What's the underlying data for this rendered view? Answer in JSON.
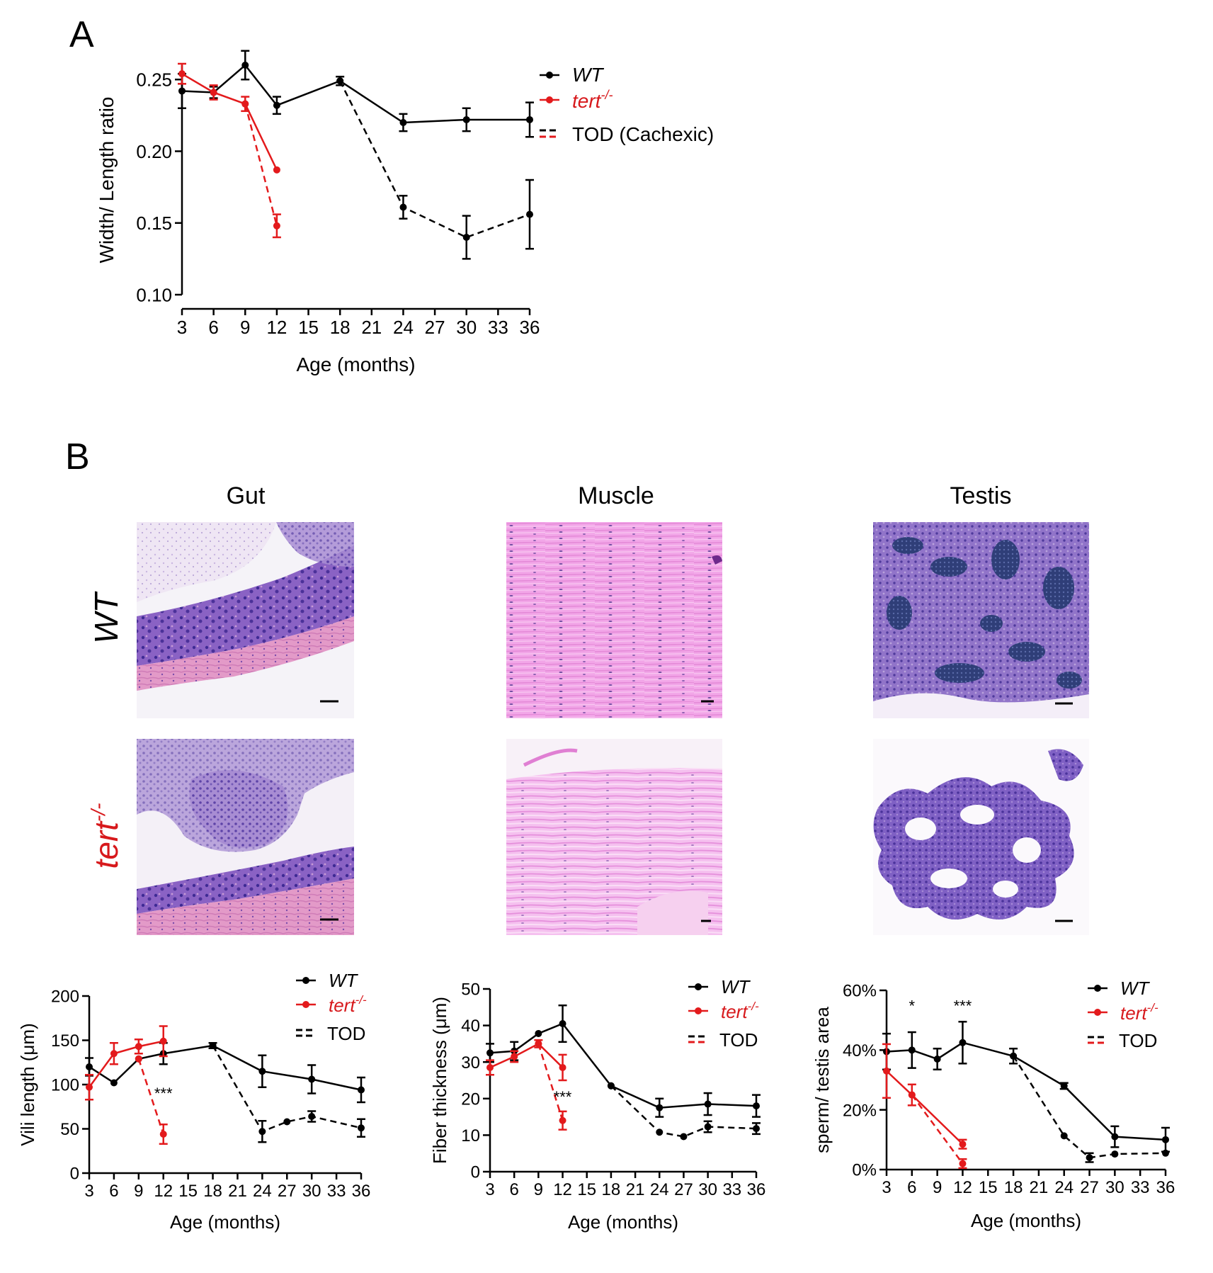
{
  "panels": {
    "a": {
      "letter": "A"
    },
    "b": {
      "letter": "B"
    }
  },
  "micrographs": {
    "columns": [
      "Gut",
      "Muscle",
      "Testis"
    ],
    "rows": [
      {
        "label": "WT",
        "color": "#000000"
      },
      {
        "label": "tert",
        "superscript": "-/-",
        "color": "#d7191c"
      }
    ]
  },
  "colors": {
    "wt": "#000000",
    "tert": "#e31a1c",
    "text_tert": "#d7191c"
  },
  "legend_text": {
    "wt": "WT",
    "tert": "tert",
    "tert_sup": "-/-",
    "tod_cachexic": "TOD (Cachexic)",
    "tod": "TOD"
  },
  "significance": {
    "gut": [
      {
        "x": 12,
        "y": 84,
        "text": "***"
      }
    ],
    "muscle": [
      {
        "x": 12,
        "y": 19,
        "text": "***"
      }
    ],
    "testis": [
      {
        "x": 6,
        "y": 53,
        "text": "*"
      },
      {
        "x": 12,
        "y": 53,
        "text": "***"
      }
    ]
  },
  "chart_data": [
    {
      "id": "ratio",
      "type": "line",
      "xlabel": "Age (months)",
      "ylabel": "Width/ Length ratio",
      "xlim": [
        3,
        36
      ],
      "ylim": [
        0.1,
        0.26
      ],
      "xticks": [
        3,
        6,
        9,
        12,
        15,
        18,
        21,
        24,
        27,
        30,
        33,
        36
      ],
      "yticks": [
        0.1,
        0.15,
        0.2,
        0.25
      ],
      "ytick_labels": [
        "0.10",
        "0.15",
        "0.20",
        "0.25"
      ],
      "series": [
        {
          "name": "WT",
          "color": "#000000",
          "dashed": false,
          "points": [
            [
              3,
              0.242,
              0.012
            ],
            [
              6,
              0.241,
              0.004
            ],
            [
              9,
              0.26,
              0.01
            ],
            [
              12,
              0.232,
              0.006
            ],
            [
              18,
              0.249,
              0.003
            ],
            [
              24,
              0.22,
              0.006
            ],
            [
              30,
              0.222,
              0.008
            ],
            [
              36,
              0.222,
              0.012
            ]
          ]
        },
        {
          "name": "tert",
          "color": "#e31a1c",
          "dashed": false,
          "points": [
            [
              3,
              0.254,
              0.007
            ],
            [
              6,
              0.241,
              0.005
            ],
            [
              9,
              0.233,
              0.005
            ],
            [
              12,
              0.187,
              0
            ]
          ]
        },
        {
          "name": "TOD (Cachexic)",
          "color": "#e31a1c",
          "dashed": true,
          "points": [
            [
              9,
              0.233,
              0
            ],
            [
              12,
              0.148,
              0.008
            ]
          ]
        },
        {
          "name": "TOD (Cachexic)",
          "color": "#000000",
          "dashed": true,
          "points": [
            [
              18,
              0.249,
              0
            ],
            [
              24,
              0.161,
              0.008
            ],
            [
              30,
              0.14,
              0.015
            ],
            [
              36,
              0.156,
              0.024
            ]
          ]
        }
      ]
    },
    {
      "id": "gut",
      "type": "line",
      "xlabel": "Age  (months)",
      "ylabel": "Vili length (μm)",
      "xlim": [
        3,
        36
      ],
      "ylim": [
        0,
        200
      ],
      "xticks": [
        3,
        6,
        9,
        12,
        15,
        18,
        21,
        24,
        27,
        30,
        33,
        36
      ],
      "yticks": [
        0,
        50,
        100,
        150,
        200
      ],
      "ytick_labels": [
        "0",
        "50",
        "100",
        "150",
        "200"
      ],
      "series": [
        {
          "name": "WT",
          "color": "#000000",
          "dashed": false,
          "points": [
            [
              3,
              120,
              10
            ],
            [
              6,
              102,
              0
            ],
            [
              9,
              129,
              0
            ],
            [
              12,
              135,
              12
            ],
            [
              18,
              144,
              3
            ],
            [
              24,
              115,
              18
            ],
            [
              30,
              106,
              16
            ],
            [
              36,
              94,
              14
            ]
          ]
        },
        {
          "name": "tert",
          "color": "#e31a1c",
          "dashed": false,
          "points": [
            [
              3,
              97,
              14
            ],
            [
              6,
              135,
              12
            ],
            [
              9,
              143,
              8
            ],
            [
              12,
              149,
              17
            ]
          ]
        },
        {
          "name": "TOD",
          "color": "#e31a1c",
          "dashed": true,
          "points": [
            [
              9,
              129,
              0
            ],
            [
              12,
              44,
              11
            ]
          ]
        },
        {
          "name": "TOD",
          "color": "#000000",
          "dashed": true,
          "points": [
            [
              18,
              144,
              0
            ],
            [
              24,
              47,
              12
            ],
            [
              27,
              58,
              0
            ],
            [
              30,
              64,
              6
            ],
            [
              36,
              51,
              10
            ]
          ]
        }
      ]
    },
    {
      "id": "muscle",
      "type": "line",
      "xlabel": "Age  (months)",
      "ylabel": "Fiber thickness (μm)",
      "xlim": [
        3,
        36
      ],
      "ylim": [
        0,
        50
      ],
      "xticks": [
        3,
        6,
        9,
        12,
        15,
        18,
        21,
        24,
        27,
        30,
        33,
        36
      ],
      "yticks": [
        0,
        10,
        20,
        30,
        40,
        50
      ],
      "ytick_labels": [
        "0",
        "10",
        "20",
        "30",
        "40",
        "50"
      ],
      "series": [
        {
          "name": "WT",
          "color": "#000000",
          "dashed": false,
          "points": [
            [
              3,
              32.5,
              2.5
            ],
            [
              6,
              33,
              2.5
            ],
            [
              9,
              37.8,
              0
            ],
            [
              12,
              40.5,
              5
            ],
            [
              18,
              23.5,
              0
            ],
            [
              24,
              17.5,
              2.5
            ],
            [
              30,
              18.5,
              3
            ],
            [
              36,
              18,
              3
            ]
          ]
        },
        {
          "name": "tert",
          "color": "#e31a1c",
          "dashed": false,
          "points": [
            [
              3,
              28.5,
              2
            ],
            [
              6,
              31.5,
              1.5
            ],
            [
              9,
              35,
              1
            ],
            [
              12,
              28.5,
              3.5
            ]
          ]
        },
        {
          "name": "TOD",
          "color": "#e31a1c",
          "dashed": true,
          "points": [
            [
              9,
              35,
              0
            ],
            [
              12,
              14,
              2.5
            ]
          ]
        },
        {
          "name": "TOD",
          "color": "#000000",
          "dashed": true,
          "points": [
            [
              18,
              23.5,
              0
            ],
            [
              24,
              10.8,
              0
            ],
            [
              27,
              9.6,
              0
            ],
            [
              30,
              12.3,
              1.5
            ],
            [
              36,
              11.8,
              1.5
            ]
          ]
        }
      ]
    },
    {
      "id": "testis",
      "type": "line",
      "xlabel": "Age  (months)",
      "ylabel": "sperm/ testis area",
      "xlim": [
        3,
        36
      ],
      "ylim": [
        0,
        60
      ],
      "xticks": [
        3,
        6,
        9,
        12,
        15,
        18,
        21,
        24,
        27,
        30,
        33,
        36
      ],
      "yticks": [
        0,
        20,
        40,
        60
      ],
      "ytick_labels": [
        "0%",
        "20%",
        "40%",
        "60%"
      ],
      "series": [
        {
          "name": "WT",
          "color": "#000000",
          "dashed": false,
          "points": [
            [
              3,
              39.5,
              6
            ],
            [
              6,
              40,
              6
            ],
            [
              9,
              37,
              3.5
            ],
            [
              12,
              42.5,
              7
            ],
            [
              18,
              38,
              2.5
            ],
            [
              24,
              28,
              1
            ],
            [
              30,
              11,
              3.5
            ],
            [
              36,
              10,
              4
            ]
          ]
        },
        {
          "name": "tert",
          "color": "#e31a1c",
          "dashed": false,
          "points": [
            [
              3,
              33,
              9
            ],
            [
              6,
              25,
              3.5
            ],
            [
              12,
              8.5,
              1.5
            ]
          ]
        },
        {
          "name": "TOD",
          "color": "#e31a1c",
          "dashed": true,
          "points": [
            [
              6,
              25,
              0
            ],
            [
              12,
              2,
              1.5
            ]
          ]
        },
        {
          "name": "TOD",
          "color": "#000000",
          "dashed": true,
          "points": [
            [
              18,
              38,
              0
            ],
            [
              24,
              11.3,
              0
            ],
            [
              27,
              4,
              1.5
            ],
            [
              30,
              5.2,
              0
            ],
            [
              36,
              5.5,
              0
            ]
          ]
        }
      ]
    }
  ]
}
